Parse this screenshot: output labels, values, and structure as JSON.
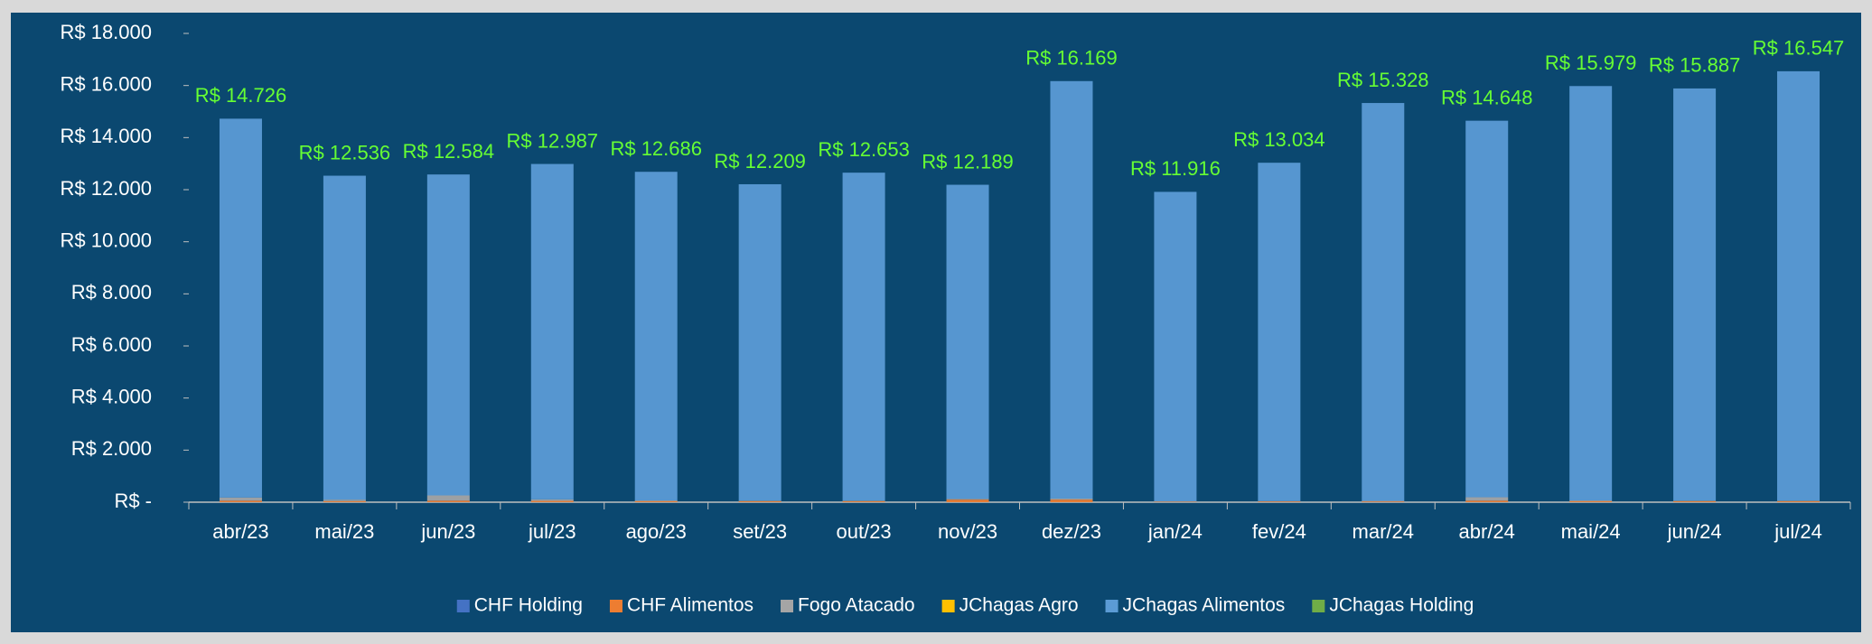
{
  "chart_data": {
    "type": "stacked_bar",
    "categories": [
      "abr/23",
      "mai/23",
      "jun/23",
      "jul/23",
      "ago/23",
      "set/23",
      "out/23",
      "nov/23",
      "dez/23",
      "jan/24",
      "fev/24",
      "mar/24",
      "abr/24",
      "mai/24",
      "jun/24",
      "jul/24"
    ],
    "series": [
      {
        "name": "CHF Holding",
        "color": "#4472c4",
        "values": [
          0,
          0,
          0,
          0,
          0,
          0,
          0,
          0,
          0,
          0,
          0,
          0,
          0,
          0,
          0,
          0
        ]
      },
      {
        "name": "CHF Alimentos",
        "color": "#ed7d31",
        "values": [
          60,
          40,
          60,
          50,
          40,
          40,
          40,
          100,
          100,
          20,
          30,
          30,
          60,
          40,
          40,
          40
        ]
      },
      {
        "name": "Fogo Atacado",
        "color": "#a5a5a5",
        "values": [
          120,
          60,
          200,
          60,
          30,
          20,
          20,
          30,
          40,
          10,
          10,
          20,
          130,
          30,
          20,
          20
        ]
      },
      {
        "name": "JChagas Agro",
        "color": "#ffc000",
        "values": [
          0,
          0,
          0,
          0,
          0,
          0,
          0,
          0,
          0,
          0,
          0,
          0,
          0,
          0,
          0,
          0
        ]
      },
      {
        "name": "JChagas Alimentos",
        "color": "#5b9bd5",
        "values": [
          14546,
          12436,
          12324,
          12877,
          12616,
          12149,
          12593,
          12059,
          16029,
          11886,
          12994,
          15278,
          14458,
          15909,
          15827,
          16487
        ]
      },
      {
        "name": "JChagas Holding",
        "color": "#70ad47",
        "values": [
          0,
          0,
          0,
          0,
          0,
          0,
          0,
          0,
          0,
          0,
          0,
          0,
          0,
          0,
          0,
          0
        ]
      }
    ],
    "totals": {
      "values": [
        14726,
        12536,
        12584,
        12987,
        12686,
        12209,
        12653,
        12189,
        16169,
        11916,
        13034,
        15328,
        14648,
        15979,
        15887,
        16547
      ],
      "value_labels": [
        "R$ 14.726",
        "R$ 12.536",
        "R$ 12.584",
        "R$ 12.987",
        "R$ 12.686",
        "R$ 12.209",
        "R$ 12.653",
        "R$ 12.189",
        "R$ 16.169",
        "R$ 11.916",
        "R$ 13.034",
        "R$ 15.328",
        "R$ 14.648",
        "R$ 15.979",
        "R$ 15.887",
        "R$ 16.547"
      ]
    },
    "ylim": [
      0,
      18000
    ],
    "yticks": [
      {
        "value": 0,
        "label": "R$ -"
      },
      {
        "value": 2000,
        "label": "R$ 2.000"
      },
      {
        "value": 4000,
        "label": "R$ 4.000"
      },
      {
        "value": 6000,
        "label": "R$ 6.000"
      },
      {
        "value": 8000,
        "label": "R$ 8.000"
      },
      {
        "value": 10000,
        "label": "R$ 10.000"
      },
      {
        "value": 12000,
        "label": "R$ 12.000"
      },
      {
        "value": 14000,
        "label": "R$ 14.000"
      },
      {
        "value": 16000,
        "label": "R$ 16.000"
      },
      {
        "value": 18000,
        "label": "R$ 18.000"
      }
    ],
    "legend": "bottom"
  }
}
